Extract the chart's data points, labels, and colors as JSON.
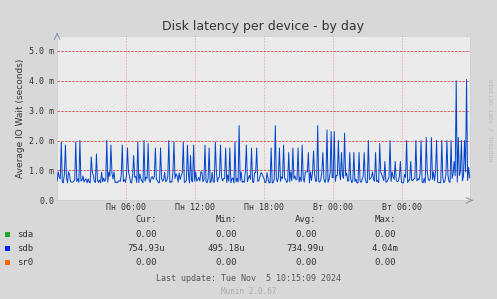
{
  "title": "Disk latency per device - by day",
  "ylabel": "Average IO Wait (seconds)",
  "background_color": "#d8d8d8",
  "plot_background": "#ebebeb",
  "ytick_labels": [
    "0.0",
    "1.0 m",
    "2.0 m",
    "3.0 m",
    "4.0 m",
    "5.0 m"
  ],
  "ytick_values": [
    0.0,
    0.001,
    0.002,
    0.003,
    0.004,
    0.005
  ],
  "ylim": [
    0.0,
    0.0055
  ],
  "xtick_labels": [
    "Пн 06:00",
    "Пн 12:00",
    "Пн 18:00",
    "Вт 00:00",
    "Вт 06:00"
  ],
  "legend_items": [
    {
      "label": "sda",
      "color": "#22aa22"
    },
    {
      "label": "sdb",
      "color": "#0022ff"
    },
    {
      "label": "sr0",
      "color": "#ff6600"
    }
  ],
  "table_headers": [
    "Cur:",
    "Min:",
    "Avg:",
    "Max:"
  ],
  "table_rows": [
    {
      "label": "sda",
      "values": [
        "0.00",
        "0.00",
        "0.00",
        "0.00"
      ]
    },
    {
      "label": "sdb",
      "values": [
        "754.93u",
        "495.18u",
        "734.99u",
        "4.04m"
      ]
    },
    {
      "label": "sr0",
      "values": [
        "0.00",
        "0.00",
        "0.00",
        "0.00"
      ]
    }
  ],
  "last_update": "Last update: Tue Nov  5 10:15:09 2024",
  "munin_version": "Munin 2.0.67",
  "watermark": "RRDTOOL / TOBI OETIKER",
  "line_color": "#0044cc",
  "line_width": 0.7,
  "n_points": 400,
  "seed": 42
}
